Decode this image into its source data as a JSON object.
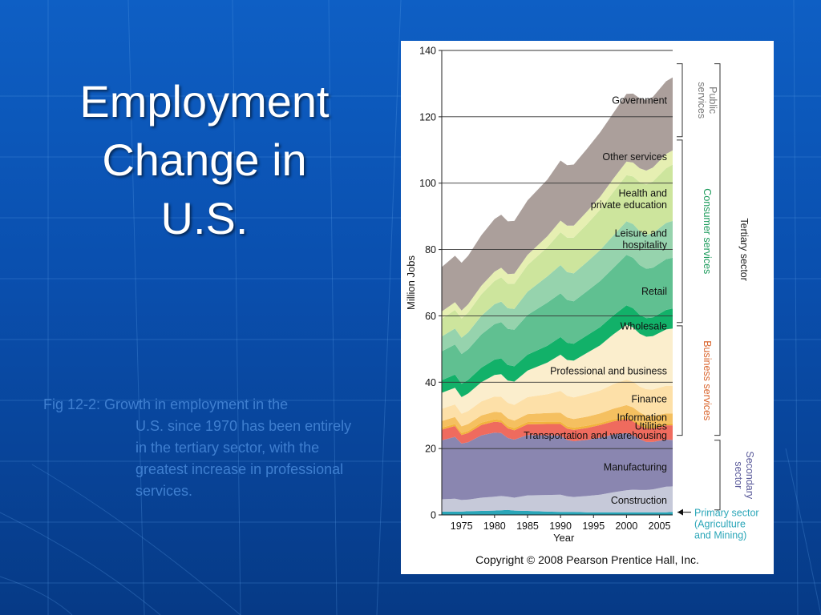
{
  "slide": {
    "title_lines": [
      "Employment",
      "Change in",
      "U.S."
    ],
    "caption_first": "Fig 12-2: Growth in employment in the",
    "caption_rest": "U.S. since 1970 has been entirely in the tertiary sector, with the greatest increase in professional services."
  },
  "chart_data": {
    "type": "area",
    "ylabel": "Million Jobs",
    "xlabel": "Year",
    "ylim": [
      0,
      140
    ],
    "xlim": [
      1972,
      2007
    ],
    "yticks": [
      0,
      20,
      40,
      60,
      80,
      100,
      120,
      140
    ],
    "xticks": [
      1975,
      1980,
      1985,
      1990,
      1995,
      2000,
      2005
    ],
    "grid": "horizontal",
    "x": [
      1972,
      1974,
      1975,
      1976,
      1978,
      1980,
      1981,
      1982,
      1983,
      1985,
      1988,
      1990,
      1991,
      1992,
      1994,
      1996,
      1998,
      2000,
      2001,
      2002,
      2003,
      2004,
      2006,
      2007
    ],
    "series": [
      {
        "name": "Primary sector (Agriculture and Mining)",
        "color": "#2aa6b8",
        "values": [
          1.0,
          1.0,
          1.0,
          1.1,
          1.2,
          1.3,
          1.4,
          1.5,
          1.3,
          1.2,
          1.0,
          0.9,
          0.9,
          0.9,
          0.8,
          0.8,
          0.8,
          0.8,
          0.8,
          0.8,
          0.8,
          0.8,
          0.8,
          0.9
        ]
      },
      {
        "name": "Construction",
        "color": "#c6c9d9",
        "values": [
          3.7,
          3.9,
          3.5,
          3.5,
          4.0,
          4.2,
          4.3,
          4.0,
          3.9,
          4.7,
          5.0,
          5.2,
          4.7,
          4.5,
          4.9,
          5.3,
          6.0,
          6.6,
          6.8,
          6.7,
          6.7,
          6.9,
          7.7,
          7.7
        ]
      },
      {
        "name": "Manufacturing",
        "color": "#8a86b0",
        "values": [
          17.8,
          18.6,
          17.0,
          17.3,
          18.8,
          19.3,
          19.0,
          17.7,
          17.5,
          18.2,
          18.0,
          17.8,
          17.0,
          16.8,
          16.9,
          17.2,
          17.4,
          17.3,
          16.4,
          15.3,
          14.5,
          14.3,
          14.2,
          14.0
        ]
      },
      {
        "name": "Transportation and warehousing",
        "color": "#ef6b5e",
        "values": [
          3.2,
          3.3,
          2.6,
          2.8,
          3.1,
          3.3,
          3.2,
          2.9,
          2.8,
          3.2,
          3.4,
          3.5,
          3.4,
          3.4,
          3.6,
          3.8,
          4.0,
          4.2,
          4.2,
          4.1,
          4.1,
          4.1,
          4.3,
          4.4
        ]
      },
      {
        "name": "Utilities",
        "color": "#f2b33c",
        "values": [
          0.6,
          0.6,
          0.6,
          0.6,
          0.7,
          0.7,
          0.7,
          0.7,
          0.7,
          0.7,
          0.7,
          0.7,
          0.7,
          0.7,
          0.7,
          0.6,
          0.6,
          0.6,
          0.6,
          0.6,
          0.6,
          0.6,
          0.6,
          0.6
        ]
      },
      {
        "name": "Information",
        "color": "#f5c060",
        "values": [
          2.0,
          2.1,
          2.0,
          2.1,
          2.2,
          2.3,
          2.3,
          2.3,
          2.2,
          2.4,
          2.6,
          2.7,
          2.7,
          2.6,
          2.7,
          2.9,
          3.2,
          3.6,
          3.6,
          3.4,
          3.2,
          3.1,
          3.0,
          3.0
        ]
      },
      {
        "name": "Finance",
        "color": "#fde0a8",
        "values": [
          3.7,
          3.8,
          3.8,
          3.9,
          4.2,
          4.6,
          4.7,
          4.7,
          4.8,
          5.1,
          5.7,
          6.6,
          6.5,
          6.5,
          6.8,
          6.9,
          7.4,
          7.7,
          7.8,
          7.8,
          8.0,
          8.0,
          8.3,
          8.3
        ]
      },
      {
        "name": "Professional and business",
        "color": "#fbeecd",
        "values": [
          4.8,
          5.0,
          5.0,
          5.3,
          5.8,
          6.5,
          6.8,
          6.7,
          7.0,
          8.0,
          9.5,
          10.9,
          10.8,
          11.1,
          12.4,
          13.6,
          15.0,
          16.5,
          16.3,
          15.9,
          15.8,
          16.1,
          17.0,
          17.3
        ]
      },
      {
        "name": "Wholesale",
        "color": "#12b169",
        "values": [
          3.8,
          4.0,
          4.0,
          4.1,
          4.4,
          4.6,
          4.8,
          4.7,
          4.6,
          4.8,
          5.1,
          5.3,
          5.2,
          5.1,
          5.3,
          5.5,
          5.7,
          5.9,
          5.8,
          5.7,
          5.6,
          5.6,
          5.9,
          6.0
        ]
      },
      {
        "name": "Retail",
        "color": "#60c091",
        "values": [
          8.7,
          9.1,
          9.0,
          9.2,
          10.0,
          10.7,
          10.9,
          10.9,
          11.0,
          12.0,
          13.0,
          13.2,
          12.9,
          12.8,
          13.3,
          13.9,
          14.3,
          15.2,
          15.2,
          15.0,
          14.9,
          15.0,
          15.3,
          15.3
        ]
      },
      {
        "name": "Leisure and hospitality",
        "color": "#96d3ad",
        "values": [
          4.5,
          4.8,
          4.9,
          5.1,
          5.6,
          6.0,
          6.2,
          6.2,
          6.3,
          7.0,
          7.9,
          8.5,
          8.4,
          8.4,
          8.8,
          9.3,
          9.8,
          10.1,
          10.2,
          10.2,
          10.2,
          10.4,
          10.9,
          11.1
        ]
      },
      {
        "name": "Health and private education",
        "color": "#cde59d",
        "values": [
          5.3,
          5.6,
          5.8,
          6.0,
          6.5,
          7.0,
          7.3,
          7.4,
          7.6,
          8.0,
          8.8,
          9.9,
          10.4,
          10.8,
          11.4,
          12.2,
          13.1,
          13.9,
          14.3,
          14.8,
          15.2,
          15.6,
          16.5,
          17.0
        ]
      },
      {
        "name": "Other services",
        "color": "#e6efb2",
        "values": [
          2.2,
          2.3,
          2.4,
          2.5,
          2.6,
          2.8,
          2.9,
          2.9,
          3.0,
          3.1,
          3.3,
          3.5,
          3.6,
          3.6,
          3.8,
          3.9,
          4.0,
          4.1,
          4.2,
          4.2,
          4.2,
          4.2,
          4.3,
          4.3
        ]
      },
      {
        "name": "Government",
        "color": "#ab9f9b",
        "values": [
          13.4,
          14.0,
          14.4,
          14.6,
          15.2,
          15.9,
          16.0,
          15.9,
          15.9,
          16.4,
          17.1,
          18.1,
          18.2,
          18.4,
          18.9,
          19.4,
          19.8,
          20.4,
          20.8,
          21.1,
          21.2,
          21.3,
          21.9,
          22.0
        ]
      }
    ],
    "labels": [
      {
        "text": "Government",
        "x": 2000,
        "y": 125
      },
      {
        "text": "Other services",
        "x": 2000,
        "y": 108
      },
      {
        "text": "Health and",
        "x": 2000,
        "y": 97
      },
      {
        "text": "private education",
        "x": 2000,
        "y": 93.5
      },
      {
        "text": "Leisure and",
        "x": 2000,
        "y": 85
      },
      {
        "text": "hospitality",
        "x": 2000,
        "y": 81.5
      },
      {
        "text": "Retail",
        "x": 2000,
        "y": 67.5
      },
      {
        "text": "Wholesale",
        "x": 2000,
        "y": 57
      },
      {
        "text": "Professional and business",
        "x": 2000,
        "y": 43.5
      },
      {
        "text": "Finance",
        "x": 2000,
        "y": 35
      },
      {
        "text": "Information",
        "x": 2000,
        "y": 29.5
      },
      {
        "text": "Utilities",
        "x": 2000,
        "y": 26.8
      },
      {
        "text": "Transportation and warehousing",
        "x": 2000,
        "y": 24
      },
      {
        "text": "Manufacturing",
        "x": 2000,
        "y": 14.5
      },
      {
        "text": "Construction",
        "x": 2000,
        "y": 4.5
      }
    ],
    "brackets": [
      {
        "lines": [
          "Public",
          "services"
        ],
        "from": 114,
        "to": 136,
        "level": 1,
        "color": "#7a7a7a"
      },
      {
        "lines": [
          "Consumer services"
        ],
        "from": 58,
        "to": 113,
        "level": 1,
        "color": "#1a9a5a"
      },
      {
        "lines": [
          "Business services"
        ],
        "from": 24,
        "to": 57,
        "level": 1,
        "color": "#d9642c"
      },
      {
        "lines": [
          "Tertiary sector"
        ],
        "from": 24,
        "to": 136,
        "level": 2,
        "color": "#222222"
      },
      {
        "lines": [
          "Secondary",
          "sector"
        ],
        "from": 1.5,
        "to": 22.5,
        "level": 2,
        "color": "#5a5a9a"
      }
    ],
    "primary_note": {
      "lines": [
        "Primary sector",
        "(Agriculture",
        "and Mining)"
      ],
      "color": "#2aa6b8"
    },
    "copyright": "Copyright © 2008 Pearson Prentice Hall, Inc."
  }
}
